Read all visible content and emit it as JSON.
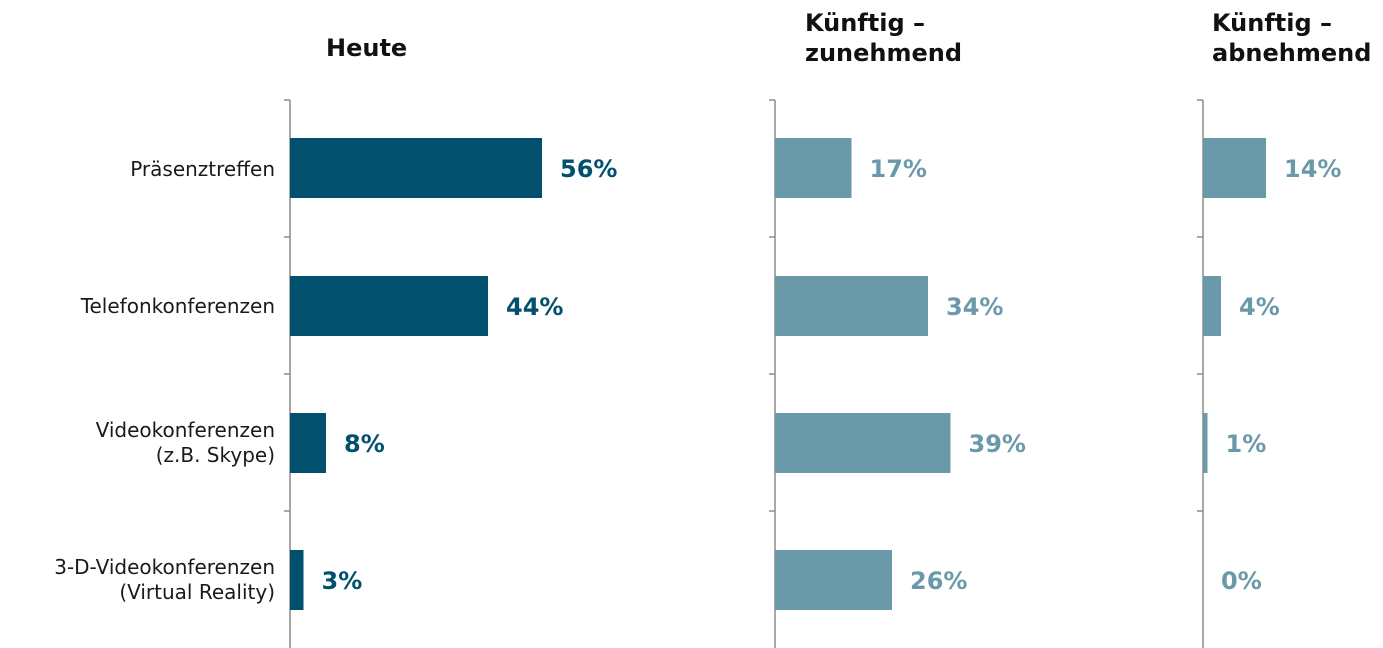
{
  "chart_data": {
    "type": "bar",
    "orientation": "horizontal",
    "categories": [
      "Präsenztreffen",
      "Telefonkonferenzen",
      "Videokonferenzen\n(z.B. Skype)",
      "3-D-Videokonferenzen\n(Virtual Reality)"
    ],
    "series": [
      {
        "name": "Heute",
        "values": [
          56,
          44,
          8,
          3
        ],
        "color": "#00506e",
        "labels": [
          "56%",
          "44%",
          "8%",
          "3%"
        ]
      },
      {
        "name": "Künftig –\nzunehmend",
        "values": [
          17,
          34,
          39,
          26
        ],
        "color": "#6a99aa",
        "labels": [
          "17%",
          "34%",
          "39%",
          "26%"
        ]
      },
      {
        "name": "Künftig –\nabnehmend",
        "values": [
          14,
          4,
          1,
          0
        ],
        "color": "#6a99aa",
        "labels": [
          "14%",
          "4%",
          "1%",
          "0%"
        ]
      }
    ],
    "unit": "%",
    "grid": false,
    "legend": "none"
  }
}
